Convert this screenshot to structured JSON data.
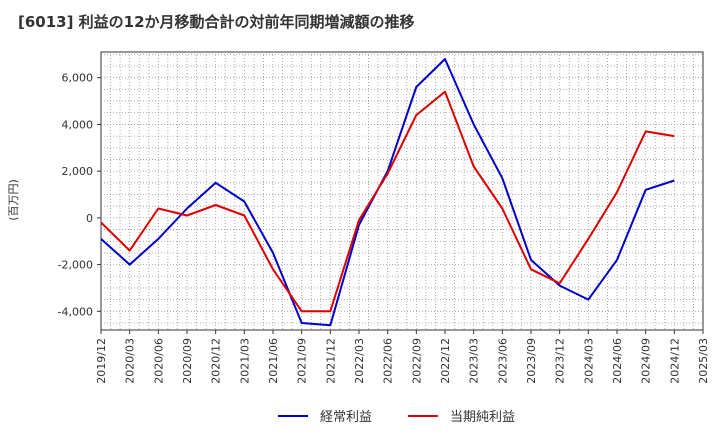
{
  "chart_data": {
    "type": "line",
    "title": "[6013]  利益の12か月移動合計の対前年同期増減額の推移",
    "ylabel": "(百万円)",
    "xlabel": "",
    "ylim": [
      -4800,
      7100
    ],
    "yticks": [
      -4000,
      -2000,
      0,
      2000,
      4000,
      6000
    ],
    "ytick_labels": [
      "-4,000",
      "-2,000",
      "0",
      "2,000",
      "4,000",
      "6,000"
    ],
    "categories": [
      "2019/12",
      "2020/03",
      "2020/06",
      "2020/09",
      "2020/12",
      "2021/03",
      "2021/06",
      "2021/09",
      "2021/12",
      "2022/03",
      "2022/06",
      "2022/09",
      "2022/12",
      "2023/03",
      "2023/06",
      "2023/09",
      "2023/12",
      "2024/03",
      "2024/06",
      "2024/09",
      "2024/12",
      "2025/03"
    ],
    "grid": true,
    "legend_position": "bottom",
    "series": [
      {
        "name": "経常利益",
        "color": "#0000cc",
        "values": [
          -900,
          -2000,
          -900,
          400,
          1500,
          700,
          -1500,
          -4500,
          -4600,
          -300,
          2000,
          5600,
          6800,
          4000,
          1700,
          -1800,
          -2900,
          -3500,
          -1800,
          1200,
          1600,
          null
        ]
      },
      {
        "name": "当期純利益",
        "color": "#dd0000",
        "values": [
          -200,
          -1400,
          400,
          100,
          550,
          100,
          -2200,
          -4000,
          -4000,
          -100,
          1900,
          4400,
          5400,
          2200,
          400,
          -2200,
          -2800,
          -900,
          1100,
          3700,
          3500,
          null
        ]
      }
    ]
  }
}
